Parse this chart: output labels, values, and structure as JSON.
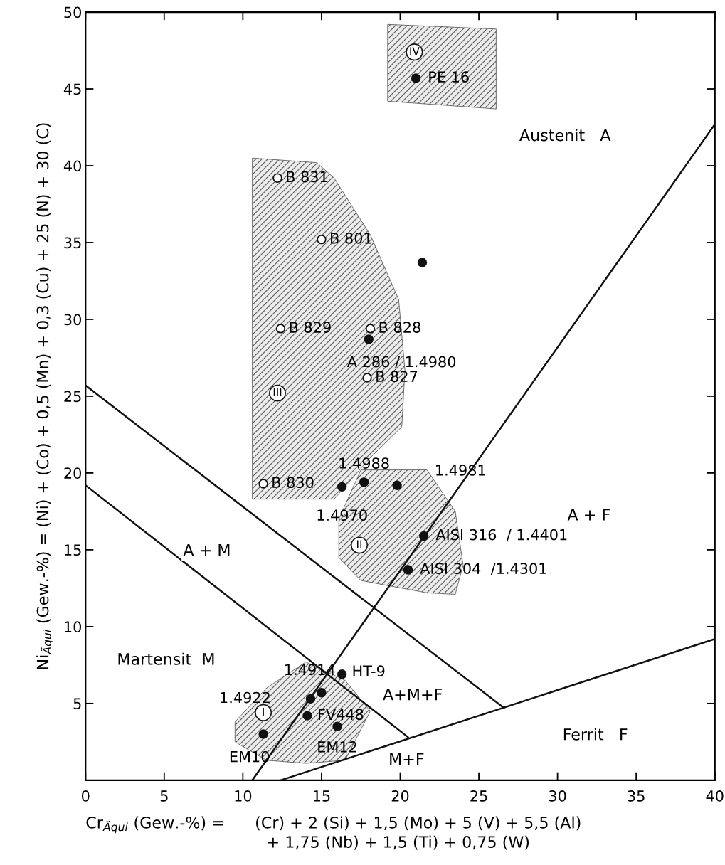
{
  "chart_data": {
    "type": "scatter",
    "xlabel": "Cr$_{Äqui}$ (Gew.-%) =      (Cr) + 2 (Si) + 1,5 (Mo) + 5 (V) + 5,5 (Al)\n                                    + 1,75 (Nb) + 1,5 (Ti) + 0,75 (W)",
    "ylabel": "Ni$_{Äqui}$ (Gew.-%) = (Ni) + (Co) + 0,5 (Mn) + 0,3 (Cu) + 25 (N) + 30 (C)",
    "xlim": [
      0,
      40
    ],
    "ylim": [
      0,
      50
    ],
    "xticks": [
      0,
      5,
      10,
      15,
      20,
      25,
      30,
      35,
      40
    ],
    "yticks": [
      5,
      10,
      15,
      20,
      25,
      30,
      35,
      40,
      45,
      50
    ],
    "grid": false,
    "series": [
      {
        "type": "area",
        "color": "#555555",
        "x": [
          19.2,
          26.1,
          26.1,
          19.2
        ],
        "values": [
          49.2,
          48.9,
          43.7,
          44.2
        ]
      },
      {
        "type": "area",
        "color": "#555555",
        "x": [
          10.6,
          14.7,
          15.8,
          18.1,
          19.9,
          20.3,
          20.1,
          18.1,
          15.8,
          10.6
        ],
        "values": [
          40.5,
          40.2,
          39.2,
          35.5,
          31.3,
          26.7,
          23.0,
          21.0,
          18.3,
          18.3
        ]
      },
      {
        "type": "area",
        "color": "#555555",
        "x": [
          16.1,
          17.5,
          21.7,
          23.5,
          24.0,
          23.5,
          21.7,
          17.5,
          16.1
        ],
        "values": [
          17.0,
          20.2,
          20.2,
          17.5,
          14.0,
          12.1,
          12.2,
          13.0,
          14.5
        ]
      },
      {
        "type": "area",
        "color": "#555555",
        "x": [
          9.5,
          11.5,
          14.0,
          16.5,
          18.1,
          16.5,
          14.0,
          11.5,
          9.5
        ],
        "values": [
          3.8,
          6.0,
          7.7,
          6.5,
          4.5,
          1.3,
          1.1,
          1.3,
          2.5
        ]
      },
      {
        "type": "line",
        "color": "#111111",
        "marker": "none",
        "line_style": "solid",
        "x": [
          10.6,
          40
        ],
        "values": [
          0,
          42.7
        ]
      },
      {
        "type": "line",
        "color": "#111111",
        "marker": "none",
        "line_style": "solid",
        "x": [
          0,
          26.6
        ],
        "values": [
          25.7,
          4.7
        ]
      },
      {
        "type": "line",
        "color": "#111111",
        "marker": "none",
        "line_style": "solid",
        "x": [
          0,
          20.5
        ],
        "values": [
          19.2,
          2.8
        ]
      },
      {
        "type": "line",
        "color": "#111111",
        "marker": "none",
        "line_style": "solid",
        "x": [
          12.4,
          40
        ],
        "values": [
          0,
          9.2
        ]
      },
      {
        "type": "scatter",
        "color": "#111111",
        "marker": "circle",
        "x": [
          21.0,
          21.4,
          18.0,
          16.3,
          17.7,
          19.8,
          21.5,
          20.5,
          16.3,
          15.0,
          14.3,
          14.1,
          16.0,
          11.3
        ],
        "values": [
          45.7,
          33.7,
          28.7,
          19.1,
          19.4,
          19.2,
          15.9,
          13.7,
          6.9,
          5.7,
          5.3,
          4.2,
          3.5,
          3.0
        ]
      },
      {
        "type": "scatter",
        "color": "#111111",
        "marker": "circle-open",
        "x": [
          12.2,
          15.0,
          12.4,
          18.1,
          17.9,
          11.3
        ],
        "values": [
          39.2,
          35.2,
          29.4,
          29.4,
          26.2,
          19.3
        ]
      }
    ],
    "annotations": [
      {
        "text": "PE 16",
        "x": 21.0,
        "y": 45.7
      },
      {
        "text": "B 831",
        "x": 12.2,
        "y": 39.2
      },
      {
        "text": "B 801",
        "x": 15.0,
        "y": 35.2
      },
      {
        "text": "B 829",
        "x": 12.4,
        "y": 29.4
      },
      {
        "text": "B 828",
        "x": 18.1,
        "y": 29.4
      },
      {
        "text": "A 286 / 1.4980",
        "x": 18.0,
        "y": 28.7
      },
      {
        "text": "B 827",
        "x": 17.9,
        "y": 26.2
      },
      {
        "text": "B 830",
        "x": 11.3,
        "y": 19.3
      },
      {
        "text": "1.4970",
        "x": 16.3,
        "y": 19.1
      },
      {
        "text": "1.4988",
        "x": 17.7,
        "y": 19.4
      },
      {
        "text": "1.4981",
        "x": 19.8,
        "y": 19.2
      },
      {
        "text": "AISI 316  / 1.4401",
        "x": 21.5,
        "y": 15.9
      },
      {
        "text": "AISI 304  /1.4301",
        "x": 20.5,
        "y": 13.7
      },
      {
        "text": "HT-9",
        "x": 16.3,
        "y": 6.9
      },
      {
        "text": "1.4914",
        "x": 15.0,
        "y": 5.7
      },
      {
        "text": "1.4922",
        "x": 14.3,
        "y": 5.3
      },
      {
        "text": "FV448",
        "x": 14.1,
        "y": 4.2
      },
      {
        "text": "EM12",
        "x": 16.0,
        "y": 3.5
      },
      {
        "text": "EM10",
        "x": 11.3,
        "y": 3.0
      },
      {
        "text": "IV",
        "x": 20.9,
        "y": 47.4
      },
      {
        "text": "III",
        "x": 12.2,
        "y": 25.2
      },
      {
        "text": "II",
        "x": 17.4,
        "y": 15.3
      },
      {
        "text": "I",
        "x": 11.3,
        "y": 4.4
      },
      "Austenit   A",
      "A + F",
      "A + M",
      "Martensit  M",
      "A+M+F",
      "Ferrit   F",
      "M+F"
    ]
  }
}
